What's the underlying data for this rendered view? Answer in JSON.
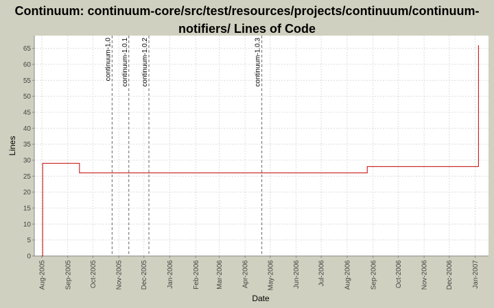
{
  "chart_data": {
    "type": "step",
    "title": "Continuum: continuum-core/src/test/resources/projects/continuum/continuum-notifiers/ Lines of Code",
    "x_label": "Date",
    "y_label": "Lines",
    "x": [
      "2005-08-01",
      "2005-08-02",
      "2005-09-15",
      "2006-08-25",
      "2007-01-05"
    ],
    "series": [
      {
        "name": "Lines",
        "color": "#c00000",
        "values": [
          0,
          29,
          26,
          28,
          66
        ]
      }
    ],
    "markers": [
      {
        "label": "continuum-1.0",
        "x": "2005-10-24"
      },
      {
        "label": "continuum-1.0.1",
        "x": "2005-11-13"
      },
      {
        "label": "continuum-1.0.2",
        "x": "2005-12-07"
      },
      {
        "label": "continuum-1.0.3",
        "x": "2006-04-21"
      }
    ],
    "xlim": [
      "2005-07-23",
      "2007-01-17"
    ],
    "xticks": [
      {
        "value": "2005-08-01",
        "label": "Aug-2005"
      },
      {
        "value": "2005-09-01",
        "label": "Sep-2005"
      },
      {
        "value": "2005-10-01",
        "label": "Oct-2005"
      },
      {
        "value": "2005-11-01",
        "label": "Nov-2005"
      },
      {
        "value": "2005-12-01",
        "label": "Dec-2005"
      },
      {
        "value": "2006-01-01",
        "label": "Jan-2006"
      },
      {
        "value": "2006-02-01",
        "label": "Feb-2006"
      },
      {
        "value": "2006-03-01",
        "label": "Mar-2006"
      },
      {
        "value": "2006-04-01",
        "label": "Apr-2006"
      },
      {
        "value": "2006-05-01",
        "label": "May-2006"
      },
      {
        "value": "2006-06-01",
        "label": "Jun-2006"
      },
      {
        "value": "2006-07-01",
        "label": "Jul-2006"
      },
      {
        "value": "2006-08-01",
        "label": "Aug-2006"
      },
      {
        "value": "2006-09-01",
        "label": "Sep-2006"
      },
      {
        "value": "2006-10-01",
        "label": "Oct-2006"
      },
      {
        "value": "2006-11-01",
        "label": "Nov-2006"
      },
      {
        "value": "2006-12-01",
        "label": "Dec-2006"
      },
      {
        "value": "2007-01-01",
        "label": "Jan-2007"
      }
    ],
    "ylim": [
      0,
      69
    ],
    "yticks": [
      0,
      5,
      10,
      15,
      20,
      25,
      30,
      35,
      40,
      45,
      50,
      55,
      60,
      65
    ],
    "grid": true
  }
}
